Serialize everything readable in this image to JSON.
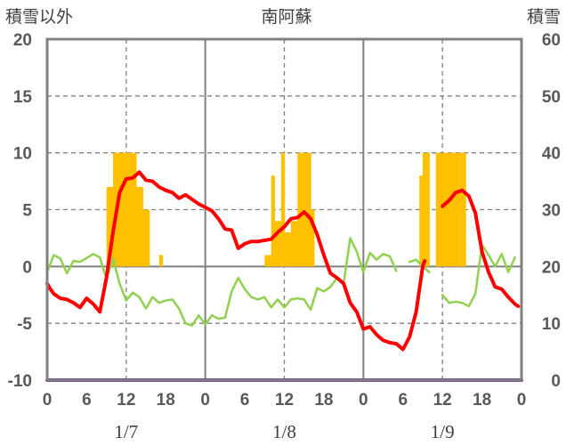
{
  "chart_data": {
    "type": "line",
    "title": "南阿蘇",
    "y_left_label": "積雪以外",
    "y_right_label": "積雪",
    "y_left_range": [
      -10,
      20
    ],
    "y_right_range": [
      0,
      60
    ],
    "y_left_ticks": [
      "20",
      "15",
      "10",
      "5",
      "0",
      "-5",
      "-10"
    ],
    "y_right_ticks": [
      "60",
      "50",
      "40",
      "30",
      "20",
      "10",
      "0"
    ],
    "x_range": [
      0,
      72
    ],
    "x_ticks": [
      "0",
      "6",
      "12",
      "18",
      "0",
      "6",
      "12",
      "18",
      "0",
      "6",
      "12",
      "18",
      "0"
    ],
    "day_labels": [
      "1/7",
      "1/8",
      "1/9"
    ],
    "grid_major_hours": [
      24,
      48
    ],
    "grid_minor_hours": [
      12,
      36,
      60
    ],
    "colors": {
      "precipitation": "#FFC000",
      "temperature": "#FF0000",
      "wind": "#92D050",
      "snow_depth": "#7030A0",
      "frame": "#808080"
    },
    "precipitation": {
      "hours": [
        9,
        9.5,
        10,
        10.5,
        11,
        11.5,
        12,
        12.5,
        13,
        13.5,
        14,
        14.5,
        15,
        17,
        33,
        33.5,
        34,
        34.5,
        35,
        35.5,
        36,
        36.5,
        37,
        37.5,
        38,
        38.5,
        39,
        39.5,
        40,
        56.5,
        57,
        57.5,
        59,
        59.5,
        60,
        60.5,
        61,
        61.5,
        62,
        62.5,
        63
      ],
      "values": [
        7,
        7,
        10,
        10,
        10,
        10,
        10,
        10,
        10,
        7,
        7,
        5,
        5,
        1,
        1,
        1,
        8,
        4,
        4,
        10,
        3,
        3,
        4,
        4,
        10,
        10,
        10,
        10,
        5,
        8,
        10,
        10,
        10,
        10,
        10,
        10,
        10,
        10,
        10,
        10,
        10
      ]
    },
    "temperature": [
      [
        0,
        -1.5
      ],
      [
        0.5,
        -2.0
      ],
      [
        1,
        -2.4
      ],
      [
        2,
        -2.8
      ],
      [
        3,
        -2.9
      ],
      [
        4,
        -3.2
      ],
      [
        5,
        -3.6
      ],
      [
        6,
        -2.8
      ],
      [
        7,
        -3.3
      ],
      [
        8,
        -4.0
      ],
      [
        9,
        -1.0
      ],
      [
        10,
        3.0
      ],
      [
        11,
        6.5
      ],
      [
        12,
        7.7
      ],
      [
        13,
        7.8
      ],
      [
        14,
        8.3
      ],
      [
        15,
        7.6
      ],
      [
        16,
        7.5
      ],
      [
        17,
        7.0
      ],
      [
        18,
        6.7
      ],
      [
        19,
        6.5
      ],
      [
        20,
        6.0
      ],
      [
        21,
        6.3
      ],
      [
        22,
        5.9
      ],
      [
        23,
        5.5
      ],
      [
        24,
        5.2
      ],
      [
        25,
        4.9
      ],
      [
        26,
        4.2
      ],
      [
        27,
        3.3
      ],
      [
        28,
        3.2
      ],
      [
        29,
        1.6
      ],
      [
        30,
        2.0
      ],
      [
        31,
        2.2
      ],
      [
        32,
        2.2
      ],
      [
        33,
        2.3
      ],
      [
        34,
        2.4
      ],
      [
        35,
        3.0
      ],
      [
        36,
        3.5
      ],
      [
        37,
        4.2
      ],
      [
        38,
        4.3
      ],
      [
        39,
        4.8
      ],
      [
        40,
        4.2
      ],
      [
        41,
        2.8
      ],
      [
        42,
        1.0
      ],
      [
        43,
        -0.6
      ],
      [
        44,
        -1.0
      ],
      [
        45,
        -1.5
      ],
      [
        46,
        -3.2
      ],
      [
        47,
        -4.0
      ],
      [
        48,
        -5.5
      ],
      [
        49,
        -5.3
      ],
      [
        50,
        -6.0
      ],
      [
        51,
        -6.5
      ],
      [
        52,
        -6.7
      ],
      [
        53,
        -6.8
      ],
      [
        54,
        -7.3
      ],
      [
        55,
        -6.2
      ],
      [
        56,
        -4.0
      ],
      [
        57,
        0.0
      ],
      [
        57.3,
        0.5
      ]
    ],
    "temperature_2": [
      [
        60,
        5.3
      ],
      [
        61,
        5.8
      ],
      [
        62,
        6.5
      ],
      [
        63,
        6.7
      ],
      [
        64,
        6.2
      ],
      [
        65,
        4.7
      ],
      [
        66,
        1.3
      ],
      [
        67,
        -0.5
      ],
      [
        68,
        -1.8
      ],
      [
        69,
        -2.0
      ],
      [
        70,
        -2.7
      ],
      [
        71,
        -3.3
      ],
      [
        71.5,
        -3.5
      ]
    ],
    "wind": [
      [
        0,
        -0.5
      ],
      [
        1,
        1.0
      ],
      [
        2,
        0.7
      ],
      [
        3,
        -0.6
      ],
      [
        4,
        0.5
      ],
      [
        5,
        0.4
      ],
      [
        7,
        1.1
      ],
      [
        8,
        0.8
      ],
      [
        9,
        -1.1
      ],
      [
        10,
        0.7
      ],
      [
        11,
        -1.5
      ],
      [
        12,
        -3.0
      ],
      [
        13,
        -2.3
      ],
      [
        14,
        -2.7
      ],
      [
        15,
        -3.7
      ],
      [
        16,
        -2.7
      ],
      [
        17,
        -3.2
      ],
      [
        18,
        -3.0
      ],
      [
        19,
        -2.9
      ],
      [
        20,
        -3.7
      ],
      [
        21,
        -5.0
      ],
      [
        22,
        -5.2
      ],
      [
        23,
        -4.3
      ],
      [
        24,
        -5.1
      ],
      [
        25,
        -4.3
      ],
      [
        26,
        -4.6
      ],
      [
        27,
        -4.5
      ],
      [
        28,
        -2.2
      ],
      [
        29,
        -1.0
      ],
      [
        30,
        -2.0
      ],
      [
        31,
        -2.7
      ],
      [
        32,
        -2.9
      ],
      [
        33,
        -2.7
      ],
      [
        34,
        -3.6
      ],
      [
        35,
        -2.9
      ],
      [
        36,
        -3.6
      ],
      [
        37,
        -2.9
      ],
      [
        38,
        -2.8
      ],
      [
        39,
        -2.9
      ],
      [
        40,
        -3.8
      ],
      [
        41,
        -1.9
      ],
      [
        42,
        -2.2
      ],
      [
        43,
        -1.8
      ],
      [
        44,
        -1.0
      ],
      [
        45,
        -1.5
      ],
      [
        46,
        2.5
      ],
      [
        47,
        1.3
      ],
      [
        48,
        -0.5
      ],
      [
        49,
        1.2
      ],
      [
        50,
        0.6
      ],
      [
        51,
        1.1
      ],
      [
        52,
        0.9
      ],
      [
        53,
        -0.4
      ]
    ],
    "wind_2": [
      [
        55,
        0.4
      ],
      [
        56,
        0.6
      ],
      [
        57,
        0.0
      ],
      [
        58,
        -0.5
      ]
    ],
    "wind_3": [
      [
        60,
        -2.5
      ],
      [
        61,
        -3.2
      ],
      [
        62,
        -3.1
      ],
      [
        63,
        -3.2
      ],
      [
        64,
        -3.5
      ],
      [
        65,
        -2.4
      ],
      [
        66,
        1.9
      ],
      [
        67,
        1.0
      ],
      [
        68,
        0.0
      ],
      [
        69,
        1.1
      ],
      [
        70,
        -0.5
      ],
      [
        71,
        0.8
      ]
    ],
    "snow_depth": [
      [
        0,
        0
      ],
      [
        72,
        0
      ]
    ]
  }
}
